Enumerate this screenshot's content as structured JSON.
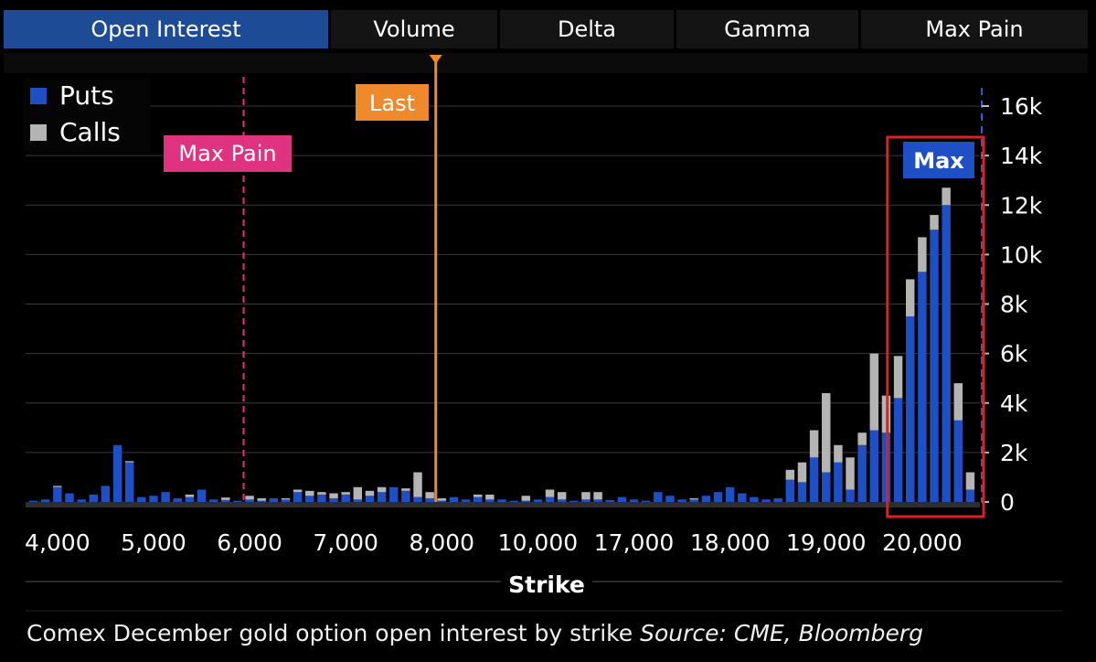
{
  "tabs": [
    {
      "label": "Open Interest",
      "active": true
    },
    {
      "label": "Volume",
      "active": false
    },
    {
      "label": "Delta",
      "active": false
    },
    {
      "label": "Gamma",
      "active": false
    },
    {
      "label": "Max Pain",
      "active": false
    }
  ],
  "caption": {
    "text": "Comex December gold option open interest by strike",
    "source": "Source: CME, Bloomberg"
  },
  "colors": {
    "puts": "#1f4fc4",
    "calls": "#b4b4b4",
    "max_pain": "#e0337f",
    "last": "#ef8a2c",
    "highlight": "#e02020",
    "max_badge": "#1f4fc4"
  },
  "chart_data": {
    "type": "bar",
    "stacked": true,
    "xlabel": "Strike",
    "ylabel": "",
    "ylim": [
      0,
      17000
    ],
    "y_ticks": [
      0,
      2000,
      4000,
      6000,
      8000,
      10000,
      12000,
      14000,
      16000
    ],
    "y_tick_labels": [
      "0",
      "2k",
      "4k",
      "6k",
      "8k",
      "10k",
      "12k",
      "14k",
      "16k"
    ],
    "x_tick_labels": [
      "4,000",
      "5,000",
      "6,000",
      "7,000",
      "8,000",
      "10,000",
      "17,000",
      "18,000",
      "19,000",
      "20,000"
    ],
    "x_tick_indices": [
      2,
      10,
      18,
      26,
      34,
      42,
      50,
      58,
      66,
      74
    ],
    "legend": [
      {
        "label": "Puts",
        "color": "#1f4fc4"
      },
      {
        "label": "Calls",
        "color": "#b4b4b4"
      }
    ],
    "legend_position": "top-left",
    "grid": true,
    "annotations": {
      "max_pain": {
        "label": "Max Pain",
        "strike_index": 18
      },
      "last": {
        "label": "Last",
        "strike_index": 33.5
      },
      "max": {
        "label": "Max",
        "start_index": 72,
        "end_index": 81
      }
    },
    "series": [
      {
        "name": "Puts",
        "values": [
          50,
          100,
          600,
          350,
          100,
          300,
          650,
          2300,
          1600,
          200,
          250,
          400,
          150,
          200,
          500,
          100,
          80,
          50,
          100,
          50,
          150,
          100,
          400,
          250,
          300,
          150,
          300,
          100,
          250,
          400,
          600,
          450,
          200,
          150,
          50,
          200,
          100,
          200,
          100,
          100,
          50,
          50,
          100,
          200,
          100,
          50,
          100,
          100,
          80,
          200,
          100,
          50,
          400,
          250,
          100,
          100,
          250,
          400,
          600,
          350,
          200,
          100,
          150,
          900,
          800,
          1800,
          1200,
          1600,
          500,
          2300,
          2900,
          2800,
          4200,
          7500,
          9300,
          11000,
          12000,
          3300,
          500
        ]
      },
      {
        "name": "Calls",
        "values": [
          0,
          0,
          50,
          0,
          0,
          0,
          0,
          0,
          50,
          0,
          0,
          0,
          0,
          100,
          0,
          0,
          100,
          0,
          150,
          100,
          0,
          50,
          100,
          200,
          100,
          200,
          100,
          500,
          200,
          200,
          0,
          100,
          1000,
          250,
          100,
          0,
          0,
          100,
          200,
          0,
          0,
          200,
          0,
          300,
          300,
          0,
          300,
          300,
          0,
          0,
          0,
          0,
          0,
          0,
          0,
          50,
          0,
          0,
          0,
          0,
          0,
          0,
          0,
          400,
          800,
          1100,
          3200,
          700,
          1300,
          500,
          3100,
          1500,
          1700,
          1500,
          1400,
          600,
          700,
          1500,
          700
        ]
      }
    ]
  }
}
